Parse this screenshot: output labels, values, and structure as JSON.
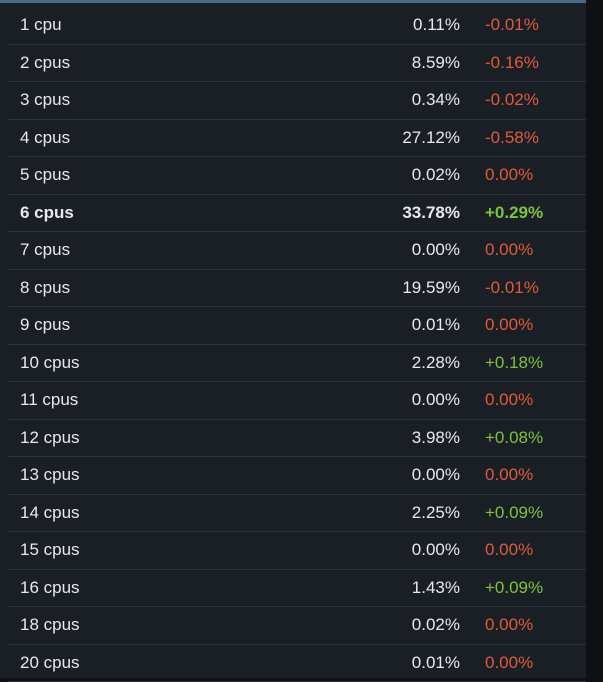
{
  "colors": {
    "negative": "#e05a3a",
    "positive": "#7cc43c",
    "text": "#e6e9ec",
    "background": "#1a1f26"
  },
  "rows": [
    {
      "label": "1 cpu",
      "percent": "0.11%",
      "change": "-0.01%",
      "trend": "neg"
    },
    {
      "label": "2 cpus",
      "percent": "8.59%",
      "change": "-0.16%",
      "trend": "neg"
    },
    {
      "label": "3 cpus",
      "percent": "0.34%",
      "change": "-0.02%",
      "trend": "neg"
    },
    {
      "label": "4 cpus",
      "percent": "27.12%",
      "change": "-0.58%",
      "trend": "neg"
    },
    {
      "label": "5 cpus",
      "percent": "0.02%",
      "change": "0.00%",
      "trend": "neg"
    },
    {
      "label": "6 cpus",
      "percent": "33.78%",
      "change": "+0.29%",
      "trend": "pos",
      "highlight": true
    },
    {
      "label": "7 cpus",
      "percent": "0.00%",
      "change": "0.00%",
      "trend": "neg"
    },
    {
      "label": "8 cpus",
      "percent": "19.59%",
      "change": "-0.01%",
      "trend": "neg"
    },
    {
      "label": "9 cpus",
      "percent": "0.01%",
      "change": "0.00%",
      "trend": "neg"
    },
    {
      "label": "10 cpus",
      "percent": "2.28%",
      "change": "+0.18%",
      "trend": "pos"
    },
    {
      "label": "11 cpus",
      "percent": "0.00%",
      "change": "0.00%",
      "trend": "neg"
    },
    {
      "label": "12 cpus",
      "percent": "3.98%",
      "change": "+0.08%",
      "trend": "pos"
    },
    {
      "label": "13 cpus",
      "percent": "0.00%",
      "change": "0.00%",
      "trend": "neg"
    },
    {
      "label": "14 cpus",
      "percent": "2.25%",
      "change": "+0.09%",
      "trend": "pos"
    },
    {
      "label": "15 cpus",
      "percent": "0.00%",
      "change": "0.00%",
      "trend": "neg"
    },
    {
      "label": "16 cpus",
      "percent": "1.43%",
      "change": "+0.09%",
      "trend": "pos"
    },
    {
      "label": "18 cpus",
      "percent": "0.02%",
      "change": "0.00%",
      "trend": "neg"
    },
    {
      "label": "20 cpus",
      "percent": "0.01%",
      "change": "0.00%",
      "trend": "neg"
    }
  ]
}
